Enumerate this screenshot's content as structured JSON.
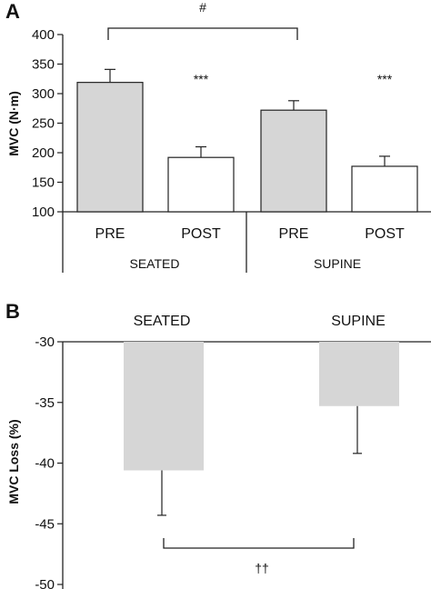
{
  "colors": {
    "pre": "#d6d6d6",
    "post": "#ffffff",
    "stroke": "#222222"
  },
  "chart_data": [
    {
      "type": "bar",
      "panel": "A",
      "ylabel": "MVC (N·m)",
      "ylim": [
        100,
        400
      ],
      "yticks": [
        100,
        150,
        200,
        250,
        300,
        350,
        400
      ],
      "groups": [
        "SEATED",
        "SUPINE"
      ],
      "categories": [
        "PRE",
        "POST",
        "PRE",
        "POST"
      ],
      "values": [
        319,
        192,
        272,
        177
      ],
      "errors": [
        22,
        18,
        16,
        17
      ],
      "annotations": [
        "***",
        "***"
      ],
      "bracket_label": "#"
    },
    {
      "type": "bar",
      "panel": "B",
      "ylabel": "MVC Loss (%)",
      "ylim": [
        -50,
        -30
      ],
      "yticks": [
        -30,
        -35,
        -40,
        -45,
        -50
      ],
      "categories": [
        "SEATED",
        "SUPINE"
      ],
      "values": [
        -40.6,
        -35.3
      ],
      "errors": [
        3.7,
        3.9
      ],
      "bracket_label": "††"
    }
  ]
}
